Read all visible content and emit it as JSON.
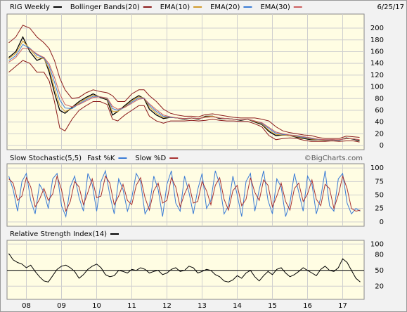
{
  "chart_data": [
    {
      "type": "line",
      "date": "6/25/17",
      "watermark": "©BigCharts.com",
      "xlim": [
        2007.45,
        2017.61
      ],
      "ylim": [
        -7,
        224
      ],
      "yticks": [
        0,
        20,
        40,
        60,
        80,
        100,
        120,
        140,
        160,
        180,
        200
      ],
      "grid": true,
      "x": [
        2007.5,
        2007.7,
        2007.9,
        2008.1,
        2008.3,
        2008.5,
        2008.65,
        2008.8,
        2008.95,
        2009.1,
        2009.3,
        2009.5,
        2009.7,
        2009.9,
        2010.1,
        2010.3,
        2010.45,
        2010.6,
        2010.8,
        2011.0,
        2011.2,
        2011.35,
        2011.5,
        2011.7,
        2011.9,
        2012.1,
        2012.3,
        2012.5,
        2012.7,
        2012.9,
        2013.1,
        2013.3,
        2013.5,
        2013.7,
        2013.9,
        2014.1,
        2014.3,
        2014.5,
        2014.7,
        2014.9,
        2015.1,
        2015.3,
        2015.5,
        2015.7,
        2015.9,
        2016.1,
        2016.3,
        2016.5,
        2016.7,
        2016.9,
        2017.1,
        2017.3,
        2017.48
      ],
      "series": [
        {
          "name": "RIG Weekly",
          "color": "#000000",
          "values": [
            150,
            160,
            185,
            160,
            145,
            150,
            125,
            90,
            60,
            55,
            65,
            75,
            82,
            88,
            82,
            78,
            52,
            58,
            68,
            78,
            85,
            80,
            62,
            52,
            46,
            48,
            47,
            45,
            47,
            45,
            50,
            50,
            46,
            46,
            45,
            43,
            45,
            40,
            36,
            24,
            17,
            18,
            17,
            14,
            12,
            10,
            10,
            9,
            10,
            9,
            13,
            11,
            8
          ]
        },
        {
          "name": "Bollinger Bands(20)",
          "color": "#8b1a1a",
          "upper": [
            175,
            185,
            205,
            200,
            185,
            175,
            165,
            145,
            115,
            95,
            80,
            82,
            90,
            95,
            92,
            90,
            85,
            75,
            75,
            88,
            95,
            95,
            85,
            75,
            62,
            55,
            52,
            50,
            50,
            49,
            53,
            54,
            52,
            50,
            48,
            47,
            47,
            47,
            45,
            42,
            32,
            25,
            22,
            20,
            18,
            17,
            14,
            12,
            12,
            12,
            16,
            15,
            14
          ],
          "lower": [
            125,
            135,
            145,
            140,
            125,
            125,
            110,
            75,
            30,
            25,
            45,
            60,
            68,
            75,
            75,
            70,
            45,
            42,
            52,
            60,
            68,
            68,
            50,
            42,
            38,
            42,
            42,
            42,
            43,
            42,
            43,
            45,
            43,
            42,
            42,
            41,
            41,
            37,
            32,
            17,
            10,
            12,
            13,
            12,
            9,
            7,
            7,
            7,
            8,
            7,
            8,
            8,
            6
          ]
        },
        {
          "name": "EMA(10)",
          "color": "#d19a2a",
          "values": [
            148,
            157,
            178,
            165,
            150,
            148,
            130,
            98,
            68,
            58,
            63,
            73,
            80,
            86,
            83,
            79,
            58,
            58,
            66,
            76,
            83,
            81,
            66,
            55,
            48,
            48,
            47,
            46,
            47,
            46,
            49,
            50,
            47,
            46,
            45,
            44,
            45,
            41,
            37,
            26,
            19,
            18,
            17,
            15,
            13,
            11,
            10,
            9.5,
            10,
            9.5,
            12.5,
            11.5,
            9
          ]
        },
        {
          "name": "EMA(20)",
          "color": "#3a7bd5",
          "values": [
            145,
            153,
            172,
            166,
            154,
            149,
            135,
            108,
            78,
            64,
            63,
            71,
            78,
            84,
            83,
            80,
            63,
            60,
            65,
            74,
            81,
            81,
            69,
            58,
            50,
            48,
            47,
            46,
            47,
            46,
            48,
            49,
            47,
            46,
            45,
            44,
            45,
            42,
            38,
            29,
            21,
            19,
            18,
            16,
            14,
            12,
            10.5,
            10,
            10,
            9.5,
            12,
            11.5,
            9.5
          ]
        },
        {
          "name": "EMA(30)",
          "color": "#cc5f5f",
          "values": [
            142,
            150,
            166,
            165,
            156,
            150,
            139,
            116,
            88,
            70,
            66,
            70,
            76,
            82,
            83,
            81,
            67,
            62,
            65,
            72,
            79,
            80,
            71,
            61,
            52,
            49,
            47,
            46,
            47,
            46,
            48,
            49,
            47,
            46,
            45,
            44,
            45,
            42,
            39,
            31,
            23,
            20,
            18,
            17,
            15,
            13,
            11,
            10,
            10,
            10,
            11.5,
            11.5,
            10
          ]
        }
      ]
    },
    {
      "type": "line",
      "title": "Slow Stochastic(5,5)",
      "xlim": [
        2007.45,
        2017.61
      ],
      "ylim": [
        -8,
        108
      ],
      "yticks": [
        0,
        25,
        50,
        75,
        100
      ],
      "grid": true,
      "x": [
        2007.5,
        2007.625,
        2007.75,
        2007.875,
        2008,
        2008.125,
        2008.25,
        2008.375,
        2008.5,
        2008.625,
        2008.75,
        2008.875,
        2009,
        2009.125,
        2009.25,
        2009.375,
        2009.5,
        2009.625,
        2009.75,
        2009.875,
        2010,
        2010.125,
        2010.25,
        2010.375,
        2010.5,
        2010.625,
        2010.75,
        2010.875,
        2011,
        2011.125,
        2011.25,
        2011.375,
        2011.5,
        2011.625,
        2011.75,
        2011.875,
        2012,
        2012.125,
        2012.25,
        2012.375,
        2012.5,
        2012.625,
        2012.75,
        2012.875,
        2013,
        2013.125,
        2013.25,
        2013.375,
        2013.5,
        2013.625,
        2013.75,
        2013.875,
        2014,
        2014.125,
        2014.25,
        2014.375,
        2014.5,
        2014.625,
        2014.75,
        2014.875,
        2015,
        2015.125,
        2015.25,
        2015.375,
        2015.5,
        2015.625,
        2015.75,
        2015.875,
        2016,
        2016.125,
        2016.25,
        2016.375,
        2016.5,
        2016.625,
        2016.75,
        2016.875,
        2017,
        2017.125,
        2017.25,
        2017.375,
        2017.5
      ],
      "series": [
        {
          "name": "Fast %K",
          "color": "#3a7bd5",
          "values": [
            85,
            60,
            20,
            75,
            90,
            40,
            15,
            70,
            55,
            25,
            80,
            90,
            30,
            10,
            65,
            85,
            45,
            20,
            90,
            70,
            20,
            75,
            95,
            50,
            15,
            80,
            60,
            20,
            45,
            90,
            75,
            15,
            30,
            85,
            60,
            10,
            70,
            95,
            35,
            20,
            85,
            55,
            15,
            60,
            90,
            25,
            40,
            95,
            70,
            15,
            30,
            85,
            50,
            10,
            75,
            90,
            20,
            60,
            95,
            40,
            15,
            80,
            65,
            10,
            35,
            90,
            55,
            20,
            85,
            70,
            15,
            45,
            95,
            30,
            20,
            80,
            90,
            35,
            15,
            25,
            20
          ]
        },
        {
          "name": "Slow %D",
          "color": "#a83232",
          "values": [
            80,
            72,
            40,
            48,
            82,
            65,
            28,
            42,
            62,
            40,
            52,
            85,
            60,
            20,
            38,
            75,
            65,
            32,
            55,
            80,
            45,
            48,
            85,
            72,
            32,
            48,
            70,
            40,
            32,
            68,
            82,
            45,
            22,
            58,
            72,
            35,
            40,
            82,
            65,
            28,
            52,
            70,
            35,
            38,
            75,
            58,
            32,
            68,
            82,
            42,
            22,
            58,
            68,
            30,
            42,
            82,
            55,
            40,
            78,
            68,
            28,
            48,
            72,
            38,
            22,
            62,
            72,
            38,
            52,
            78,
            42,
            30,
            70,
            62,
            25,
            50,
            85,
            62,
            25,
            20,
            22
          ]
        }
      ]
    },
    {
      "type": "line",
      "reference_line": 50,
      "xlim": [
        2007.45,
        2017.61
      ],
      "ylim": [
        -5,
        107
      ],
      "yticks": [
        20,
        50,
        80,
        100
      ],
      "grid": true,
      "xticks": [
        {
          "value": 2008,
          "label": "08"
        },
        {
          "value": 2009,
          "label": "09"
        },
        {
          "value": 2010,
          "label": "10"
        },
        {
          "value": 2011,
          "label": "11"
        },
        {
          "value": 2012,
          "label": "12"
        },
        {
          "value": 2013,
          "label": "13"
        },
        {
          "value": 2014,
          "label": "14"
        },
        {
          "value": 2015,
          "label": "15"
        },
        {
          "value": 2016,
          "label": "16"
        },
        {
          "value": 2017,
          "label": "17"
        }
      ],
      "x": [
        2007.5,
        2007.625,
        2007.75,
        2007.875,
        2008,
        2008.125,
        2008.25,
        2008.375,
        2008.5,
        2008.625,
        2008.75,
        2008.875,
        2009,
        2009.125,
        2009.25,
        2009.375,
        2009.5,
        2009.625,
        2009.75,
        2009.875,
        2010,
        2010.125,
        2010.25,
        2010.375,
        2010.5,
        2010.625,
        2010.75,
        2010.875,
        2011,
        2011.125,
        2011.25,
        2011.375,
        2011.5,
        2011.625,
        2011.75,
        2011.875,
        2012,
        2012.125,
        2012.25,
        2012.375,
        2012.5,
        2012.625,
        2012.75,
        2012.875,
        2013,
        2013.125,
        2013.25,
        2013.375,
        2013.5,
        2013.625,
        2013.75,
        2013.875,
        2014,
        2014.125,
        2014.25,
        2014.375,
        2014.5,
        2014.625,
        2014.75,
        2014.875,
        2015,
        2015.125,
        2015.25,
        2015.375,
        2015.5,
        2015.625,
        2015.75,
        2015.875,
        2016,
        2016.125,
        2016.25,
        2016.375,
        2016.5,
        2016.625,
        2016.75,
        2016.875,
        2017,
        2017.125,
        2017.25,
        2017.375,
        2017.5
      ],
      "series": [
        {
          "name": "Relative Strength Index(14)",
          "color": "#000000",
          "values": [
            82,
            70,
            65,
            62,
            55,
            60,
            48,
            38,
            30,
            28,
            40,
            52,
            58,
            60,
            55,
            48,
            35,
            42,
            52,
            58,
            62,
            55,
            42,
            38,
            40,
            50,
            48,
            45,
            52,
            50,
            55,
            52,
            45,
            48,
            50,
            42,
            45,
            52,
            55,
            48,
            50,
            58,
            55,
            45,
            48,
            52,
            50,
            42,
            38,
            30,
            28,
            32,
            40,
            35,
            45,
            50,
            38,
            30,
            40,
            48,
            42,
            52,
            55,
            45,
            38,
            42,
            48,
            55,
            50,
            45,
            40,
            52,
            58,
            50,
            48,
            55,
            72,
            65,
            50,
            35,
            28
          ]
        }
      ]
    }
  ]
}
